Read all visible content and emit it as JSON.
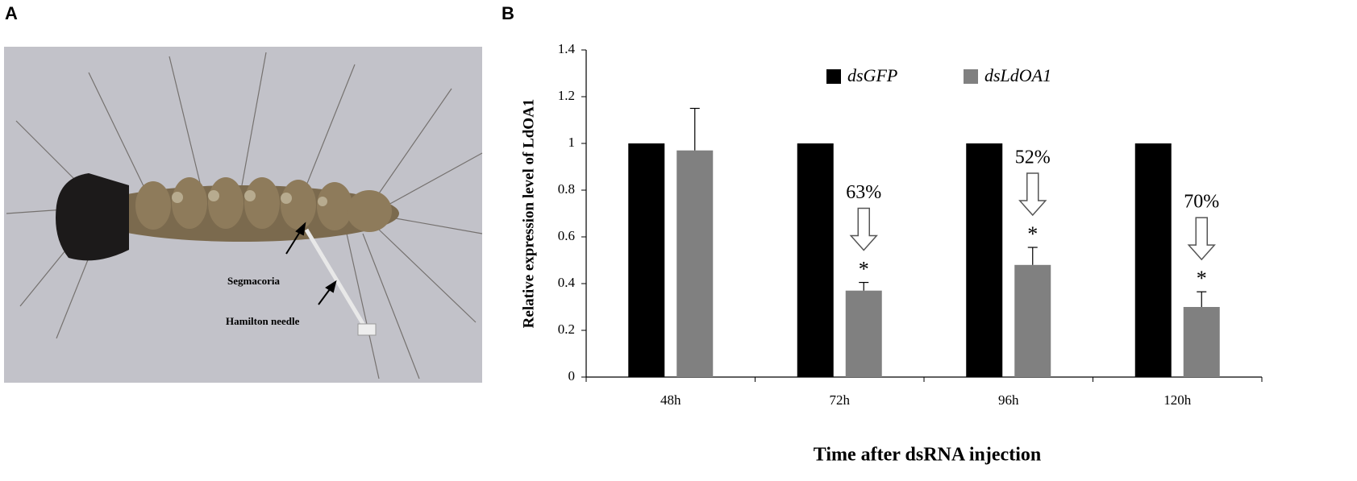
{
  "panel_a": {
    "label": "A",
    "annotations": [
      "Segmacoria",
      "Hamilton needle"
    ]
  },
  "chart_data": {
    "type": "bar",
    "panel_label": "B",
    "xlabel": "Time after dsRNA injection",
    "ylabel": "Relative expression level of LdOA1",
    "categories": [
      "48h",
      "72h",
      "96h",
      "120h"
    ],
    "series": [
      {
        "name": "dsGFP",
        "color": "#000000",
        "values": [
          1,
          1,
          1,
          1
        ]
      },
      {
        "name": "dsLdOA1",
        "color": "#808080",
        "values": [
          0.97,
          0.37,
          0.48,
          0.3
        ],
        "errors": [
          0.18,
          0.035,
          0.075,
          0.065
        ]
      }
    ],
    "significance_labels": [
      null,
      "*",
      "*",
      "*"
    ],
    "reduction_labels": [
      null,
      "63%",
      "52%",
      "70%"
    ],
    "ylim": [
      0,
      1.4
    ],
    "yticks": [
      0,
      0.2,
      0.4,
      0.6,
      0.8,
      1,
      1.2,
      1.4
    ],
    "legend": "top"
  }
}
